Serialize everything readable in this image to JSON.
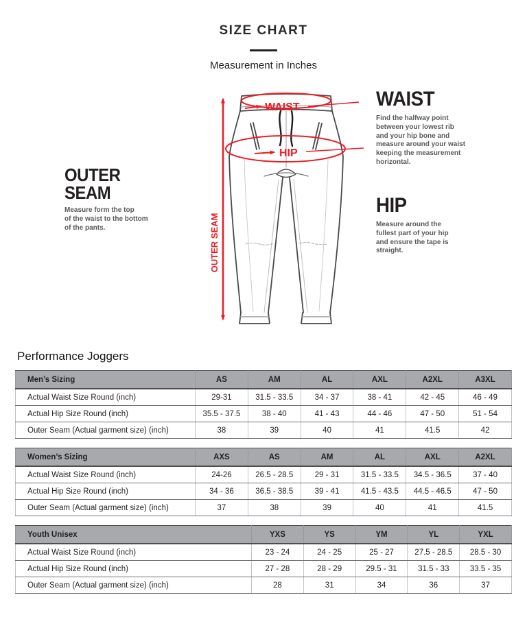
{
  "header": {
    "title": "SIZE CHART",
    "subtitle": "Measurement in Inches"
  },
  "diagram": {
    "labels": {
      "waist": "WAIST",
      "hip": "HIP",
      "outer_seam": "OUTER SEAM"
    },
    "notes": {
      "outer_seam": {
        "heading": "OUTER SEAM",
        "description": "Measure form the top\nof the waist to the bottom\nof the pants."
      },
      "waist": {
        "heading": "WAIST",
        "description": "Find the halfway point\nbetween your lowest rib\nand your hip bone and\nmeasure around your waist\nkeeping the measurement\nhorizontal."
      },
      "hip": {
        "heading": "HIP",
        "description": "Measure around the\nfullest part of your hip\nand ensure the tape is\nstraight."
      }
    }
  },
  "product_title": "Performance Joggers",
  "tables": [
    {
      "title": "Men’s Sizing",
      "sizes": [
        "AS",
        "AM",
        "AL",
        "AXL",
        "A2XL",
        "A3XL"
      ],
      "rows": [
        {
          "label": "Actual Waist Size Round (inch)",
          "values": [
            "29-31",
            "31.5 - 33.5",
            "34 - 37",
            "38 - 41",
            "42 - 45",
            "46 - 49"
          ]
        },
        {
          "label": "Actual Hip Size Round (inch)",
          "values": [
            "35.5 - 37.5",
            "38 - 40",
            "41 - 43",
            "44 - 46",
            "47 - 50",
            "51 - 54"
          ]
        },
        {
          "label": "Outer Seam (Actual garment size) (inch)",
          "values": [
            "38",
            "39",
            "40",
            "41",
            "41.5",
            "42"
          ]
        }
      ]
    },
    {
      "title": "Women’s Sizing",
      "sizes": [
        "AXS",
        "AS",
        "AM",
        "AL",
        "AXL",
        "A2XL"
      ],
      "rows": [
        {
          "label": "Actual Waist Size Round (inch)",
          "values": [
            "24-26",
            "26.5 - 28.5",
            "29 - 31",
            "31.5 - 33.5",
            "34.5 - 36.5",
            "37 - 40"
          ]
        },
        {
          "label": "Actual Hip Size Round (inch)",
          "values": [
            "34 - 36",
            "36.5 - 38.5",
            "39 - 41",
            "41.5 - 43.5",
            "44.5 - 46.5",
            "47 - 50"
          ]
        },
        {
          "label": "Outer Seam (Actual garment size) (inch)",
          "values": [
            "37",
            "38",
            "39",
            "40",
            "41",
            "41.5"
          ]
        }
      ]
    },
    {
      "title": "Youth Unisex",
      "sizes": [
        "YXS",
        "YS",
        "YM",
        "YL",
        "YXL"
      ],
      "rows": [
        {
          "label": "Actual Waist Size Round (inch)",
          "values": [
            "23 - 24",
            "24 - 25",
            "25 - 27",
            "27.5 - 28.5",
            "28.5 - 30"
          ]
        },
        {
          "label": "Actual Hip Size Round (inch)",
          "values": [
            "27 - 28",
            "28 - 29",
            "29.5 - 31",
            "31.5 - 33",
            "33.5 - 35"
          ]
        },
        {
          "label": "Outer Seam (Actual garment size) (inch)",
          "values": [
            "28",
            "31",
            "34",
            "36",
            "37"
          ]
        }
      ]
    }
  ],
  "colors": {
    "accent": "#ed1c24",
    "table_header_bg": "#a7a9ac",
    "heading_text": "#231f20",
    "body_text": "#58595b"
  }
}
